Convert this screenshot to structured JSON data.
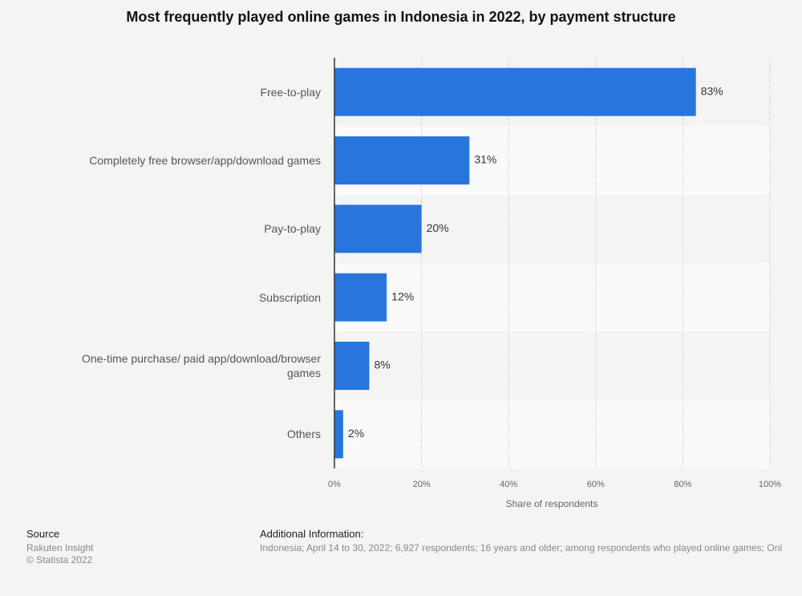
{
  "chart_data": {
    "type": "bar",
    "orientation": "horizontal",
    "title": "Most frequently played online games in Indonesia in 2022, by payment structure",
    "categories": [
      "Free-to-play",
      "Completely free browser/app/download games",
      "Pay-to-play",
      "Subscription",
      "One-time purchase/ paid app/download/browser games",
      "Others"
    ],
    "values": [
      83,
      31,
      20,
      12,
      8,
      2
    ],
    "value_labels": [
      "83%",
      "31%",
      "20%",
      "12%",
      "8%",
      "2%"
    ],
    "color": "#2876dd",
    "xlim": [
      0,
      100
    ],
    "xticks": [
      {
        "value": 0,
        "label": "0%"
      },
      {
        "value": 20,
        "label": "20%"
      },
      {
        "value": 40,
        "label": "40%"
      },
      {
        "value": 60,
        "label": "60%"
      },
      {
        "value": 80,
        "label": "80%"
      },
      {
        "value": 100,
        "label": "100%"
      }
    ],
    "x_label": "Share of respondents",
    "grid": true
  },
  "footer": {
    "source_title": "Source",
    "source": "Rakuten Insight",
    "copyright": "© Statista 2022",
    "info_title": "Additional Information:",
    "info": "Indonesia; April 14 to 30, 2022; 6,927 respondents; 16 years and older; among respondents who played online games; Onl"
  }
}
